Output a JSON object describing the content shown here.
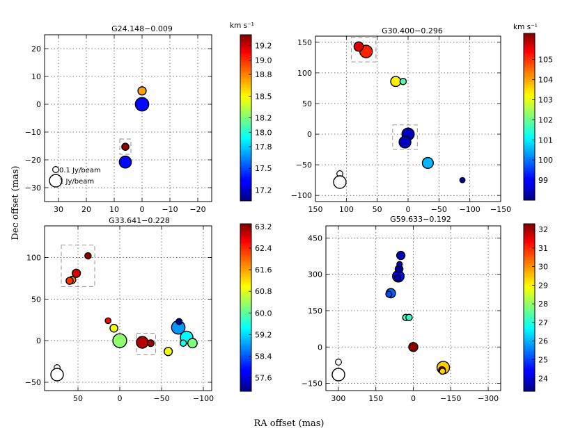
{
  "figure": {
    "xlabel": "RA offset (mas)",
    "ylabel": "Dec offset (mas)",
    "colorbar_unit": "km s⁻¹"
  },
  "chart_data": [
    {
      "type": "scatter",
      "title": "G24.148−0.009",
      "xlim": [
        35,
        -25
      ],
      "ylim": [
        -35,
        25
      ],
      "xticks": [
        30,
        20,
        10,
        0,
        -10,
        -20
      ],
      "yticks": [
        20,
        10,
        0,
        -10,
        -20,
        -30
      ],
      "clim": [
        17.05,
        19.35
      ],
      "cticks": [
        17.2,
        17.5,
        17.8,
        18.0,
        18.2,
        18.5,
        18.8,
        19.0,
        19.2
      ],
      "colorbar_label": "km s⁻¹",
      "points": [
        {
          "x": 0,
          "y": 0,
          "v": 17.35,
          "flux": 1.2
        },
        {
          "x": 0,
          "y": 4.8,
          "v": 18.7,
          "flux": 0.3
        },
        {
          "x": 6,
          "y": -15.3,
          "v": 19.3,
          "flux": 0.18
        },
        {
          "x": 6,
          "y": -20.8,
          "v": 17.35,
          "flux": 0.9
        }
      ],
      "boxes": [
        {
          "x0": 8,
          "x1": 4,
          "y0": -18,
          "y1": -12.5
        }
      ],
      "legend": [
        {
          "label": "0.1 Jy/beam",
          "flux": 0.1
        },
        {
          "label": "1 Jy/beam",
          "flux": 1
        }
      ]
    },
    {
      "type": "scatter",
      "title": "G30.400−0.296",
      "xlim": [
        150,
        -150
      ],
      "ylim": [
        -110,
        160
      ],
      "xticks": [
        150,
        100,
        50,
        0,
        -50,
        -100,
        -150
      ],
      "yticks": [
        150,
        100,
        50,
        0,
        -50,
        -100
      ],
      "clim": [
        98,
        106.3
      ],
      "cticks": [
        99,
        100,
        101,
        102,
        103,
        104,
        105
      ],
      "colorbar_label": "km s⁻¹",
      "points": [
        {
          "x": 80,
          "y": 143,
          "v": 105.5,
          "flux": 0.45
        },
        {
          "x": 68,
          "y": 135,
          "v": 105.0,
          "flux": 1.0
        },
        {
          "x": 20,
          "y": 86,
          "v": 103.3,
          "flux": 0.55
        },
        {
          "x": 8,
          "y": 86,
          "v": 101.8,
          "flux": 0.12
        },
        {
          "x": 0,
          "y": 0,
          "v": 98.5,
          "flux": 0.95
        },
        {
          "x": 5,
          "y": -13,
          "v": 98.5,
          "flux": 0.85
        },
        {
          "x": -32,
          "y": -47,
          "v": 100.5,
          "flux": 0.7
        },
        {
          "x": -88,
          "y": -75,
          "v": 98.3,
          "flux": 0.05
        }
      ],
      "boxes": [
        {
          "x0": 92,
          "x1": 52,
          "y0": 118,
          "y1": 158
        },
        {
          "x0": 25,
          "x1": -15,
          "y0": -25,
          "y1": 15
        }
      ],
      "legend": [
        {
          "label": "",
          "flux": 0.1
        },
        {
          "label": "",
          "flux": 1
        }
      ]
    },
    {
      "type": "scatter",
      "title": "G33.641−0.228",
      "xlim": [
        90,
        -110
      ],
      "ylim": [
        -60,
        138
      ],
      "xticks": [
        50,
        0,
        -50,
        -100
      ],
      "yticks": [
        100,
        50,
        0,
        -50
      ],
      "clim": [
        57.1,
        63.3
      ],
      "cticks": [
        57.6,
        58.4,
        59.2,
        60.0,
        60.8,
        61.6,
        62.4,
        63.2
      ],
      "colorbar_label": "",
      "points": [
        {
          "x": 38,
          "y": 102,
          "v": 63.2,
          "flux": 0.12
        },
        {
          "x": 52,
          "y": 81,
          "v": 62.8,
          "flux": 0.3
        },
        {
          "x": 57,
          "y": 73,
          "v": 61.7,
          "flux": 0.2
        },
        {
          "x": 60,
          "y": 72,
          "v": 62.2,
          "flux": 0.18
        },
        {
          "x": 14,
          "y": 24,
          "v": 62.5,
          "flux": 0.08
        },
        {
          "x": 7,
          "y": 15,
          "v": 60.9,
          "flux": 0.25
        },
        {
          "x": 0,
          "y": 0,
          "v": 60.3,
          "flux": 1.3
        },
        {
          "x": -27,
          "y": -2,
          "v": 63.0,
          "flux": 0.85
        },
        {
          "x": -37,
          "y": -3,
          "v": 63.1,
          "flux": 0.15
        },
        {
          "x": -58,
          "y": -13,
          "v": 60.9,
          "flux": 0.3
        },
        {
          "x": -70,
          "y": 16,
          "v": 58.8,
          "flux": 1.2
        },
        {
          "x": -71,
          "y": 23,
          "v": 57.2,
          "flux": 0.1
        },
        {
          "x": -80,
          "y": 4,
          "v": 59.4,
          "flux": 1.0
        },
        {
          "x": -76,
          "y": -3,
          "v": 59.6,
          "flux": 0.12
        },
        {
          "x": -87,
          "y": -3,
          "v": 60.2,
          "flux": 0.45
        }
      ],
      "boxes": [
        {
          "x0": 70,
          "x1": 30,
          "y0": 65,
          "y1": 115
        },
        {
          "x0": -20,
          "x1": -43,
          "y0": -17,
          "y1": 9
        }
      ],
      "legend": [
        {
          "label": "",
          "flux": 0.1
        },
        {
          "label": "",
          "flux": 1
        }
      ]
    },
    {
      "type": "scatter",
      "title": "G59.633−0.192",
      "xlim": [
        350,
        -350
      ],
      "ylim": [
        -180,
        500
      ],
      "xticks": [
        300,
        150,
        0,
        -150,
        -300
      ],
      "yticks": [
        450,
        300,
        150,
        0,
        -150
      ],
      "clim": [
        23.3,
        32.3
      ],
      "cticks": [
        24,
        25,
        26,
        27,
        28,
        29,
        30,
        31,
        32
      ],
      "colorbar_label": "",
      "points": [
        {
          "x": 50,
          "y": 378,
          "v": 23.8,
          "flux": 0.3
        },
        {
          "x": 55,
          "y": 342,
          "v": 23.7,
          "flux": 0.06
        },
        {
          "x": 57,
          "y": 322,
          "v": 23.6,
          "flux": 0.25
        },
        {
          "x": 60,
          "y": 292,
          "v": 24.5,
          "flux": 0.8
        },
        {
          "x": 63,
          "y": 285,
          "v": 23.8,
          "flux": 0.12
        },
        {
          "x": 90,
          "y": 222,
          "v": 25.3,
          "flux": 0.45
        },
        {
          "x": 98,
          "y": 218,
          "v": 25.1,
          "flux": 0.1
        },
        {
          "x": 30,
          "y": 122,
          "v": 27.4,
          "flux": 0.12
        },
        {
          "x": 17,
          "y": 122,
          "v": 27.1,
          "flux": 0.12
        },
        {
          "x": 0,
          "y": 0,
          "v": 32.2,
          "flux": 0.4
        },
        {
          "x": -120,
          "y": -85,
          "v": 29.4,
          "flux": 1.0
        },
        {
          "x": -115,
          "y": -95,
          "v": 32.0,
          "flux": 0.15
        },
        {
          "x": -117,
          "y": -100,
          "v": 29.3,
          "flux": 0.1
        }
      ],
      "boxes": [],
      "legend": [
        {
          "label": "",
          "flux": 0.1
        },
        {
          "label": "",
          "flux": 1
        }
      ]
    }
  ]
}
